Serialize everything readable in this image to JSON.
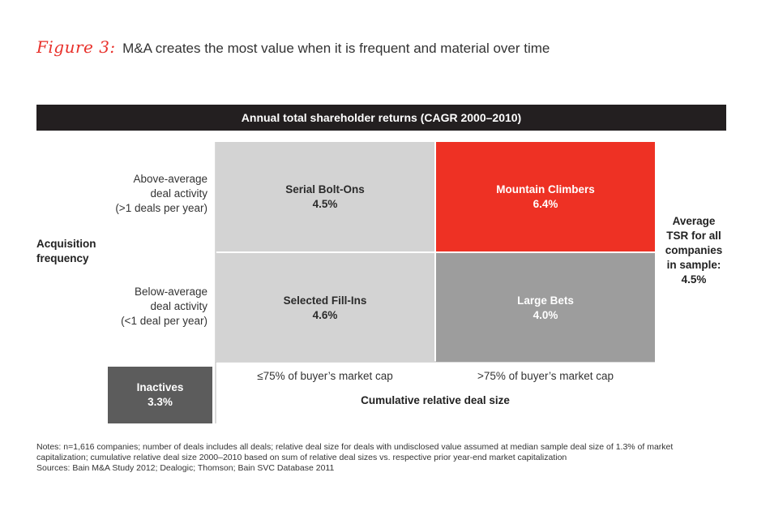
{
  "figure": {
    "label": "Figure 3:",
    "title": "M&A creates the most value when it is frequent and material over time"
  },
  "header": "Annual total shareholder returns (CAGR 2000–2010)",
  "chart_data": {
    "type": "table",
    "title": "Annual total shareholder returns (CAGR 2000–2010)",
    "ylabel": "Acquisition frequency",
    "xlabel": "Cumulative relative deal size",
    "rows": [
      [
        "Above-average",
        "deal activity",
        "(>1 deals per year)"
      ],
      [
        "Below-average",
        "deal activity",
        "(<1 deal per year)"
      ]
    ],
    "columns": [
      "≤75% of buyer’s market cap",
      ">75% of buyer’s market cap"
    ],
    "cells": [
      {
        "name": "Serial Bolt-Ons",
        "value": 4.5,
        "label": "4.5%",
        "color": "#d3d3d3"
      },
      {
        "name": "Mountain Climbers",
        "value": 6.4,
        "label": "6.4%",
        "color": "#ee3124"
      },
      {
        "name": "Selected Fill-Ins",
        "value": 4.6,
        "label": "4.6%",
        "color": "#d3d3d3"
      },
      {
        "name": "Large Bets",
        "value": 4.0,
        "label": "4.0%",
        "color": "#9d9d9d"
      }
    ],
    "inactives": {
      "name": "Inactives",
      "value": 3.3,
      "label": "3.3%",
      "color": "#5c5c5c"
    },
    "average": {
      "lines": [
        "Average",
        "TSR for all",
        "companies",
        "in sample:"
      ],
      "value": 4.5,
      "label": "4.5%"
    }
  },
  "notes": [
    "Notes: n=1,616 companies; number of deals includes all deals; relative deal size for deals with undisclosed value assumed at median sample deal size of 1.3% of market",
    "capitalization; cumulative relative deal size 2000–2010 based on sum of relative deal sizes vs. respective prior year-end market capitalization",
    "Sources: Bain M&A Study 2012; Dealogic; Thomson; Bain SVC Database 2011"
  ]
}
